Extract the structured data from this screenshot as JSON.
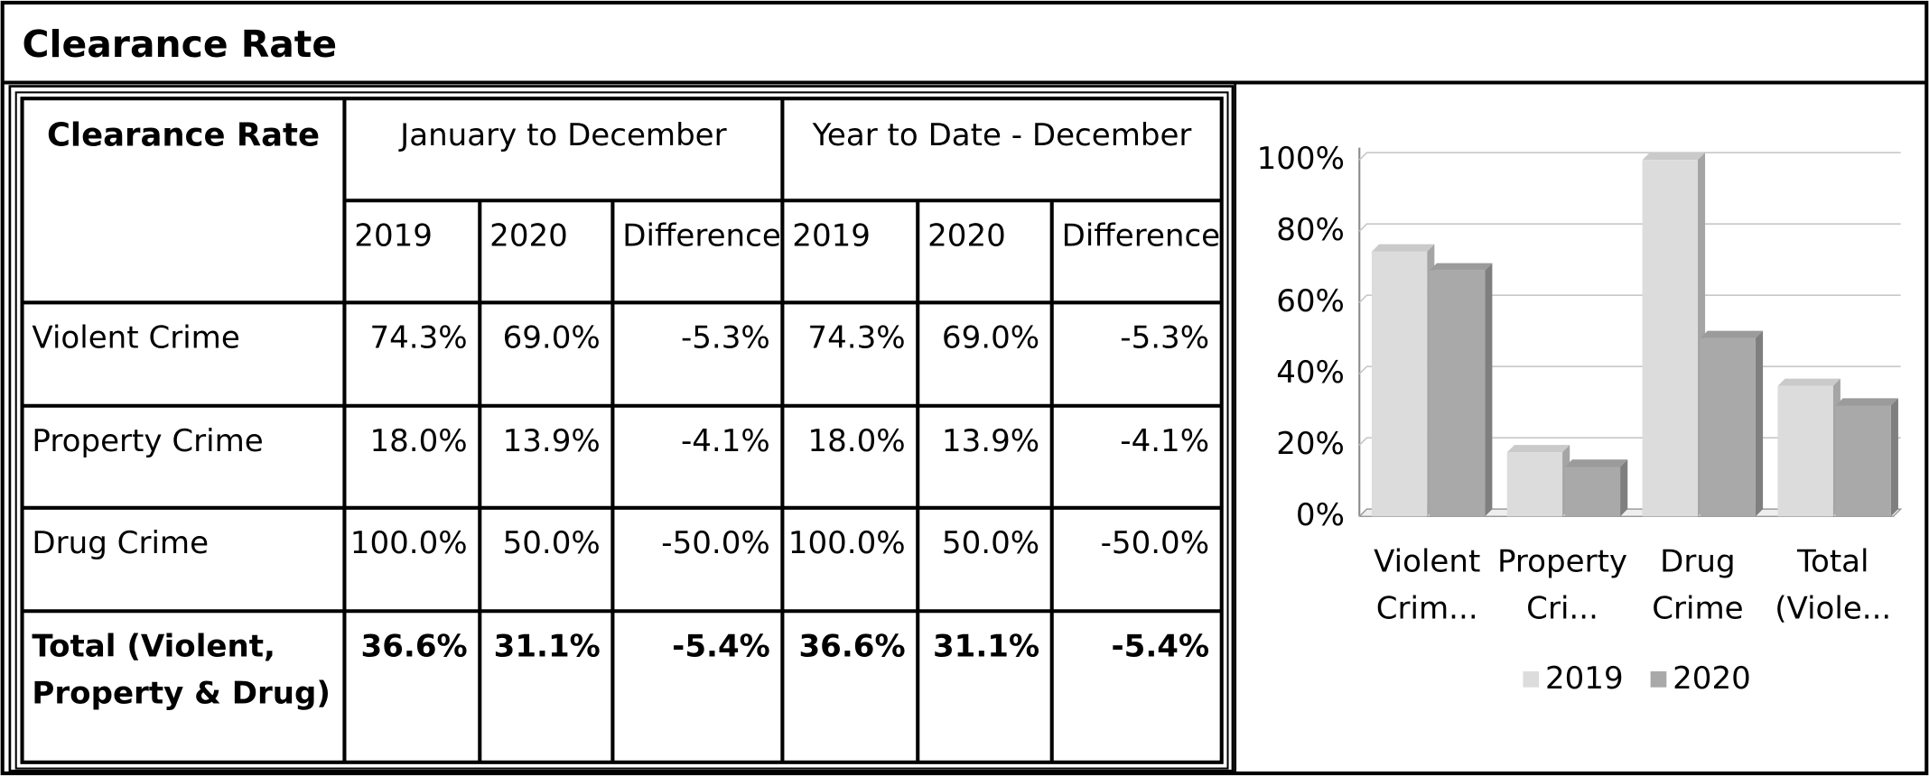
{
  "title": "Clearance Rate",
  "table": {
    "header": [
      "Clearance Rate",
      "January to December",
      "Year to Date - December"
    ],
    "subheader": [
      "2019",
      "2020",
      "Difference",
      "2019",
      "2020",
      "Difference"
    ],
    "rows": [
      [
        "Violent Crime",
        "74.3%",
        "69.0%",
        "-5.3%",
        "74.3%",
        "69.0%",
        "-5.3%"
      ],
      [
        "Property Crime",
        "18.0%",
        "13.9%",
        "-4.1%",
        "18.0%",
        "13.9%",
        "-4.1%"
      ],
      [
        "Drug Crime",
        "100.0%",
        "50.0%",
        "-50.0%",
        "100.0%",
        "50.0%",
        "-50.0%"
      ],
      [
        "Total (Violent, Property & Drug)",
        "36.6%",
        "31.1%",
        "-5.4%",
        "36.6%",
        "31.1%",
        "-5.4%"
      ]
    ]
  },
  "chart_data": {
    "type": "bar",
    "categories": [
      "Violent Crim...",
      "Property Cri...",
      "Drug Crime",
      "Total (Viole..."
    ],
    "series": [
      {
        "name": "2019",
        "color": "#dcdcdc",
        "values": [
          74.3,
          18.0,
          100.0,
          36.6
        ]
      },
      {
        "name": "2020",
        "color": "#a9a9a9",
        "values": [
          69.0,
          13.9,
          50.0,
          31.1
        ]
      }
    ],
    "ylim": [
      0,
      100
    ],
    "yticks": [
      {
        "value": 0,
        "label": "0%"
      },
      {
        "value": 20,
        "label": "20%"
      },
      {
        "value": 40,
        "label": "40%"
      },
      {
        "value": 60,
        "label": "60%"
      },
      {
        "value": 80,
        "label": "80%"
      },
      {
        "value": 100,
        "label": "100%"
      }
    ],
    "grid": true,
    "legend": "bottom"
  }
}
